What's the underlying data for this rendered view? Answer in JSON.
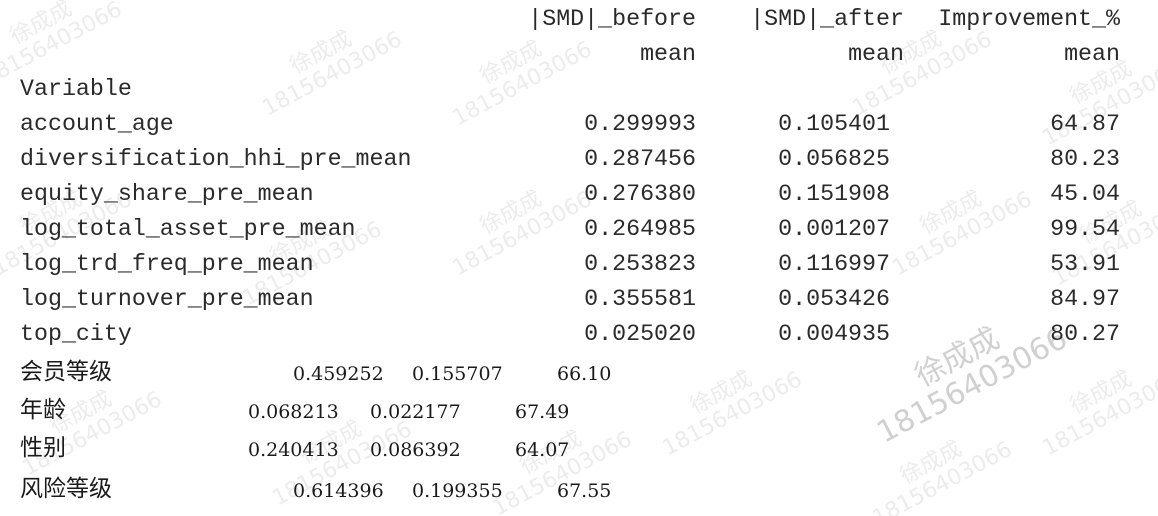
{
  "table": {
    "headers": {
      "before": "|SMD|_before",
      "after": "|SMD|_after",
      "improvement": "Improvement_%",
      "stat": "mean",
      "index_name": "Variable"
    },
    "rows": [
      {
        "variable": "account_age",
        "before": "0.299993",
        "after": "0.105401",
        "improvement": "64.87"
      },
      {
        "variable": "diversification_hhi_pre_mean",
        "before": "0.287456",
        "after": "0.056825",
        "improvement": "80.23"
      },
      {
        "variable": "equity_share_pre_mean",
        "before": "0.276380",
        "after": "0.151908",
        "improvement": "45.04"
      },
      {
        "variable": "log_total_asset_pre_mean",
        "before": "0.264985",
        "after": "0.001207",
        "improvement": "99.54"
      },
      {
        "variable": "log_trd_freq_pre_mean",
        "before": "0.253823",
        "after": "0.116997",
        "improvement": "53.91"
      },
      {
        "variable": "log_turnover_pre_mean",
        "before": "0.355581",
        "after": "0.053426",
        "improvement": "84.97"
      },
      {
        "variable": "top_city",
        "before": "0.025020",
        "after": "0.004935",
        "improvement": "80.27"
      }
    ],
    "extra_rows": [
      {
        "variable": "会员等级",
        "before": "0.459252",
        "after": "0.155707",
        "improvement": "66.10"
      },
      {
        "variable": "年龄",
        "before": "0.068213",
        "after": "0.022177",
        "improvement": "67.49"
      },
      {
        "variable": "性别",
        "before": "0.240413",
        "after": "0.086392",
        "improvement": "64.07"
      },
      {
        "variable": "风险等级",
        "before": "0.614396",
        "after": "0.199355",
        "improvement": "67.55"
      }
    ]
  },
  "watermark": {
    "name": "徐成成",
    "number": "18156403066"
  }
}
